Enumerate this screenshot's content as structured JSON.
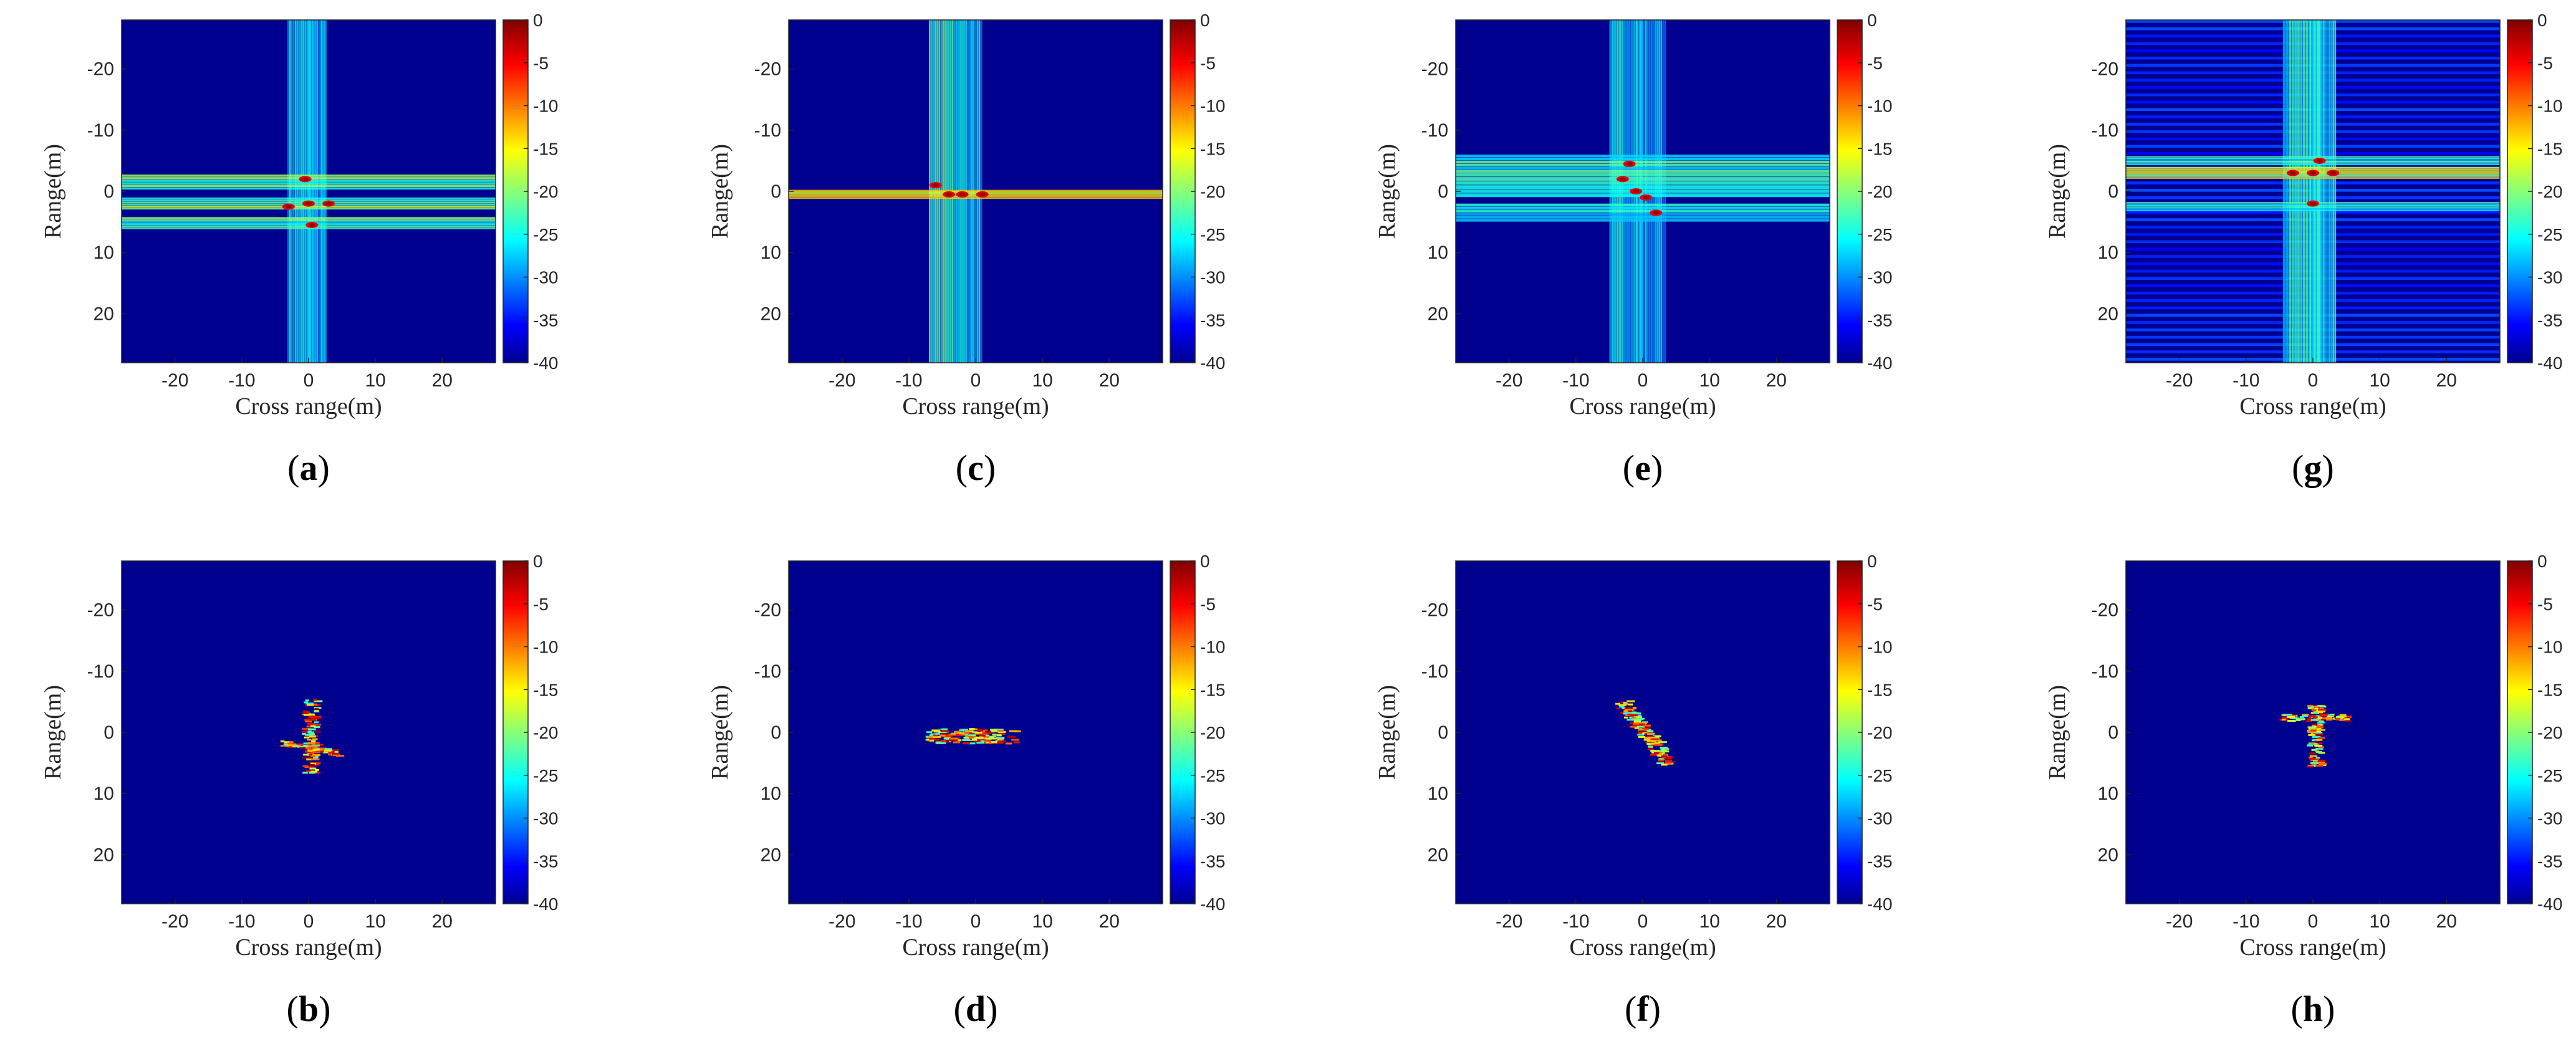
{
  "chart_data": [
    {
      "type": "heatmap",
      "panel": "a",
      "label_open": "(",
      "label_letter": "a",
      "label_close": ")",
      "xlabel": "Cross range(m)",
      "ylabel": "Range(m)",
      "xlim": [
        -28,
        28
      ],
      "ylim": [
        -28,
        28
      ],
      "xticks": [
        "-20",
        "-10",
        "0",
        "10",
        "20"
      ],
      "yticks": [
        "-20",
        "-10",
        "0",
        "10",
        "20"
      ],
      "colorbar": {
        "range": [
          -40,
          0
        ],
        "ticks": [
          "0",
          "-5",
          "-10",
          "-15",
          "-20",
          "-25",
          "-30",
          "-35",
          "-40"
        ]
      },
      "noise": "sidelobe cross",
      "rows": [
        {
          "y": -1.5,
          "w": 2.5,
          "i": 0.55
        },
        {
          "y": 2.0,
          "w": 2.0,
          "i": 0.6
        },
        {
          "y": 5.2,
          "w": 2.0,
          "i": 0.55
        }
      ],
      "cols": [
        {
          "x": -1.2,
          "w": 4,
          "i": 0.45
        },
        {
          "x": 1.2,
          "w": 3,
          "i": 0.4
        }
      ],
      "scatterers": [
        {
          "x": -0.5,
          "y": -2
        },
        {
          "x": 0,
          "y": 2
        },
        {
          "x": 0.5,
          "y": 5.5
        },
        {
          "x": -3,
          "y": 2.5
        },
        {
          "x": 3,
          "y": 2
        }
      ]
    },
    {
      "type": "heatmap",
      "panel": "b",
      "label_open": "(",
      "label_letter": "b",
      "label_close": ")",
      "xlabel": "Cross range(m)",
      "ylabel": "Range(m)",
      "xlim": [
        -28,
        28
      ],
      "ylim": [
        -28,
        28
      ],
      "xticks": [
        "-20",
        "-10",
        "0",
        "10",
        "20"
      ],
      "yticks": [
        "-20",
        "-10",
        "0",
        "10",
        "20"
      ],
      "colorbar": {
        "range": [
          -40,
          0
        ],
        "ticks": [
          "0",
          "-5",
          "-10",
          "-15",
          "-20",
          "-25",
          "-30",
          "-35",
          "-40"
        ]
      },
      "noise": "focused",
      "target": {
        "center": [
          0,
          0
        ],
        "extent_x": [
          -5,
          5
        ],
        "extent_y": [
          -6,
          7
        ],
        "shape": "cross"
      }
    },
    {
      "type": "heatmap",
      "panel": "c",
      "label_open": "(",
      "label_letter": "c",
      "label_close": ")",
      "xlabel": "Cross range(m)",
      "ylabel": "Range(m)",
      "xlim": [
        -28,
        28
      ],
      "ylim": [
        -28,
        28
      ],
      "xticks": [
        "-20",
        "-10",
        "0",
        "10",
        "20"
      ],
      "yticks": [
        "-20",
        "-10",
        "0",
        "10",
        "20"
      ],
      "colorbar": {
        "range": [
          -40,
          0
        ],
        "ticks": [
          "0",
          "-5",
          "-10",
          "-15",
          "-20",
          "-25",
          "-30",
          "-35",
          "-40"
        ]
      },
      "noise": "sidelobe cross",
      "rows": [
        {
          "y": 0.5,
          "w": 1.5,
          "i": 0.7
        }
      ],
      "cols": [
        {
          "x": -5,
          "w": 4,
          "i": 0.5
        },
        {
          "x": -1,
          "w": 4,
          "i": 0.45
        }
      ],
      "scatterers": [
        {
          "x": -4,
          "y": 0.5
        },
        {
          "x": -2,
          "y": 0.5
        },
        {
          "x": 1,
          "y": 0.5
        },
        {
          "x": -6,
          "y": -1
        }
      ]
    },
    {
      "type": "heatmap",
      "panel": "d",
      "label_open": "(",
      "label_letter": "d",
      "label_close": ")",
      "xlabel": "Cross range(m)",
      "ylabel": "Range(m)",
      "xlim": [
        -28,
        28
      ],
      "ylim": [
        -28,
        28
      ],
      "xticks": [
        "-20",
        "-10",
        "0",
        "10",
        "20"
      ],
      "yticks": [
        "-20",
        "-10",
        "0",
        "10",
        "20"
      ],
      "colorbar": {
        "range": [
          -40,
          0
        ],
        "ticks": [
          "0",
          "-5",
          "-10",
          "-15",
          "-20",
          "-25",
          "-30",
          "-35",
          "-40"
        ]
      },
      "noise": "focused",
      "target": {
        "center": [
          -2,
          0.5
        ],
        "extent_x": [
          -8,
          8
        ],
        "extent_y": [
          -2,
          3
        ],
        "shape": "horizontal"
      }
    },
    {
      "type": "heatmap",
      "panel": "e",
      "label_open": "(",
      "label_letter": "e",
      "label_close": ")",
      "xlabel": "Cross range(m)",
      "ylabel": "Range(m)",
      "xlim": [
        -28,
        28
      ],
      "ylim": [
        -28,
        28
      ],
      "xticks": [
        "-20",
        "-10",
        "0",
        "10",
        "20"
      ],
      "yticks": [
        "-20",
        "-10",
        "0",
        "10",
        "20"
      ],
      "colorbar": {
        "range": [
          -40,
          0
        ],
        "ticks": [
          "0",
          "-5",
          "-10",
          "-15",
          "-20",
          "-25",
          "-30",
          "-35",
          "-40"
        ]
      },
      "noise": "sidelobe cross",
      "rows": [
        {
          "y": -4.5,
          "w": 3,
          "i": 0.5
        },
        {
          "y": -1,
          "w": 4,
          "i": 0.45
        },
        {
          "y": 3.5,
          "w": 3,
          "i": 0.45
        }
      ],
      "cols": [
        {
          "x": -2.5,
          "w": 5,
          "i": 0.45
        },
        {
          "x": 1.5,
          "w": 4,
          "i": 0.4
        }
      ],
      "scatterers": [
        {
          "x": -2,
          "y": -4.5
        },
        {
          "x": -3,
          "y": -2
        },
        {
          "x": 0.5,
          "y": 1
        },
        {
          "x": 2,
          "y": 3.5
        },
        {
          "x": -1,
          "y": 0
        }
      ]
    },
    {
      "type": "heatmap",
      "panel": "f",
      "label_open": "(",
      "label_letter": "f",
      "label_close": ")",
      "xlabel": "Cross range(m)",
      "ylabel": "Range(m)",
      "xlim": [
        -28,
        28
      ],
      "ylim": [
        -28,
        28
      ],
      "xticks": [
        "-20",
        "-10",
        "0",
        "10",
        "20"
      ],
      "yticks": [
        "-20",
        "-10",
        "0",
        "10",
        "20"
      ],
      "colorbar": {
        "range": [
          -40,
          0
        ],
        "ticks": [
          "0",
          "-5",
          "-10",
          "-15",
          "-20",
          "-25",
          "-30",
          "-35",
          "-40"
        ]
      },
      "noise": "focused",
      "target": {
        "center": [
          0,
          0
        ],
        "extent_x": [
          -6,
          4
        ],
        "extent_y": [
          -6,
          6
        ],
        "shape": "diagonal"
      }
    },
    {
      "type": "heatmap",
      "panel": "g",
      "label_open": "(",
      "label_letter": "g",
      "label_close": ")",
      "xlabel": "Cross range(m)",
      "ylabel": "Range(m)",
      "xlim": [
        -28,
        28
      ],
      "ylim": [
        -28,
        28
      ],
      "xticks": [
        "-20",
        "-10",
        "0",
        "10",
        "20"
      ],
      "yticks": [
        "-20",
        "-10",
        "0",
        "10",
        "20"
      ],
      "colorbar": {
        "range": [
          -40,
          0
        ],
        "ticks": [
          "0",
          "-5",
          "-10",
          "-15",
          "-20",
          "-25",
          "-30",
          "-35",
          "-40"
        ]
      },
      "noise": "sidelobe cross wide",
      "rows": [
        {
          "y": -3,
          "w": 2,
          "i": 0.7
        },
        {
          "y": -5,
          "w": 1.5,
          "i": 0.5
        },
        {
          "y": 2.5,
          "w": 1.5,
          "i": 0.5
        }
      ],
      "cols": [
        {
          "x": -1.5,
          "w": 6,
          "i": 0.5
        },
        {
          "x": 1.5,
          "w": 4,
          "i": 0.45
        }
      ],
      "scatterers": [
        {
          "x": -3,
          "y": -3
        },
        {
          "x": 0,
          "y": -3
        },
        {
          "x": 3,
          "y": -3
        },
        {
          "x": 0,
          "y": 2
        },
        {
          "x": 1,
          "y": -5
        }
      ]
    },
    {
      "type": "heatmap",
      "panel": "h",
      "label_open": "(",
      "label_letter": "h",
      "label_close": ")",
      "xlabel": "Cross range(m)",
      "ylabel": "Range(m)",
      "xlim": [
        -28,
        28
      ],
      "ylim": [
        -28,
        28
      ],
      "xticks": [
        "-20",
        "-10",
        "0",
        "10",
        "20"
      ],
      "yticks": [
        "-20",
        "-10",
        "0",
        "10",
        "20"
      ],
      "colorbar": {
        "range": [
          -40,
          0
        ],
        "ticks": [
          "0",
          "-5",
          "-10",
          "-15",
          "-20",
          "-25",
          "-30",
          "-35",
          "-40"
        ]
      },
      "noise": "focused",
      "target": {
        "center": [
          0,
          0
        ],
        "extent_x": [
          -6,
          6
        ],
        "extent_y": [
          -6,
          6
        ],
        "shape": "vertical-wing"
      }
    }
  ],
  "colors": {
    "background_low": "#00008f",
    "colormap": "jet"
  }
}
